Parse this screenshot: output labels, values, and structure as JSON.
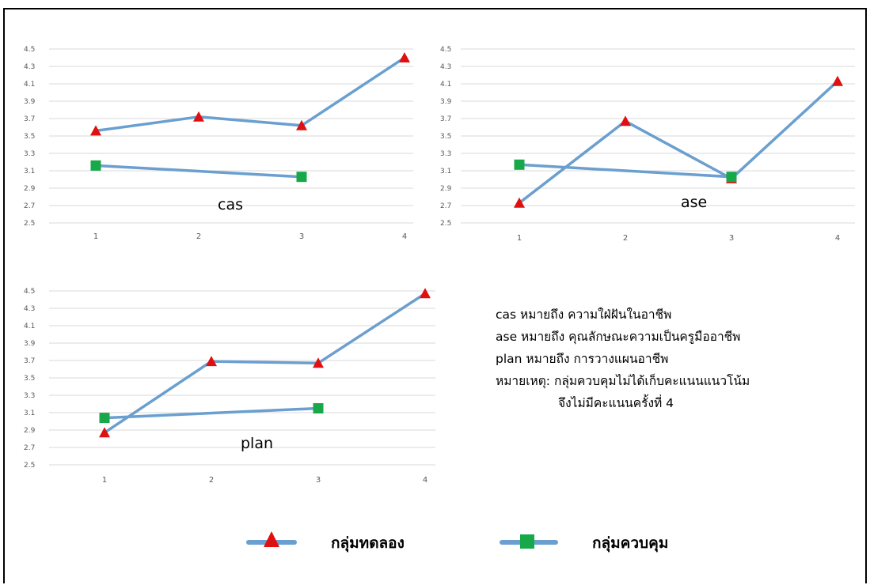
{
  "colors": {
    "line": "#6a9fcf",
    "experimental_marker": "#e01010",
    "control_marker": "#17a84a",
    "grid": "#d9d9d9",
    "tick_text": "#595959"
  },
  "chart_data": [
    {
      "type": "line",
      "label": "cas",
      "categories": [
        "1",
        "2",
        "3",
        "4"
      ],
      "ylim": [
        2.5,
        4.5
      ],
      "yticks": [
        "2.5",
        "2.7",
        "2.9",
        "3.1",
        "3.3",
        "3.5",
        "3.7",
        "3.9",
        "4.1",
        "4.3",
        "4.5"
      ],
      "grid": true,
      "series": [
        {
          "name": "กลุ่มทดลอง",
          "marker": "triangle",
          "values": [
            3.56,
            3.72,
            3.62,
            4.4
          ]
        },
        {
          "name": "กลุ่มควบคุม",
          "marker": "square",
          "values": [
            3.16,
            null,
            3.03,
            null
          ]
        }
      ]
    },
    {
      "type": "line",
      "label": "ase",
      "categories": [
        "1",
        "2",
        "3",
        "4"
      ],
      "ylim": [
        2.5,
        4.5
      ],
      "yticks": [
        "2.5",
        "2.7",
        "2.9",
        "3.1",
        "3.3",
        "3.5",
        "3.7",
        "3.9",
        "4.1",
        "4.3",
        "4.5"
      ],
      "grid": true,
      "series": [
        {
          "name": "กลุ่มทดลอง",
          "marker": "triangle",
          "values": [
            2.73,
            3.67,
            3.01,
            4.13
          ]
        },
        {
          "name": "กลุ่มควบคุม",
          "marker": "square",
          "values": [
            3.17,
            null,
            3.03,
            null
          ]
        }
      ]
    },
    {
      "type": "line",
      "label": "plan",
      "categories": [
        "1",
        "2",
        "3",
        "4"
      ],
      "ylim": [
        2.5,
        4.5
      ],
      "yticks": [
        "2.5",
        "2.7",
        "2.9",
        "3.1",
        "3.3",
        "3.5",
        "3.7",
        "3.9",
        "4.1",
        "4.3",
        "4.5"
      ],
      "grid": true,
      "series": [
        {
          "name": "กลุ่มทดลอง",
          "marker": "triangle",
          "values": [
            2.87,
            3.69,
            3.67,
            4.47
          ]
        },
        {
          "name": "กลุ่มควบคุม",
          "marker": "square",
          "values": [
            3.04,
            null,
            3.15,
            null
          ]
        }
      ]
    }
  ],
  "notes": {
    "line1": "cas หมายถึง ความใฝ่ฝันในอาชีพ",
    "line2": "ase หมายถึง คุณลักษณะความเป็นครูมืออาชีพ",
    "line3": "plan หมายถึง การวางแผนอาชีพ",
    "line4": "หมายเหตุ: กลุ่มควบคุมไม่ได้เก็บคะแนนแนวโน้ม",
    "line5": "จึงไม่มีคะแนนครั้งที่ 4"
  },
  "legend": {
    "experimental": "กลุ่มทดลอง",
    "control": "กลุ่มควบคุม"
  }
}
